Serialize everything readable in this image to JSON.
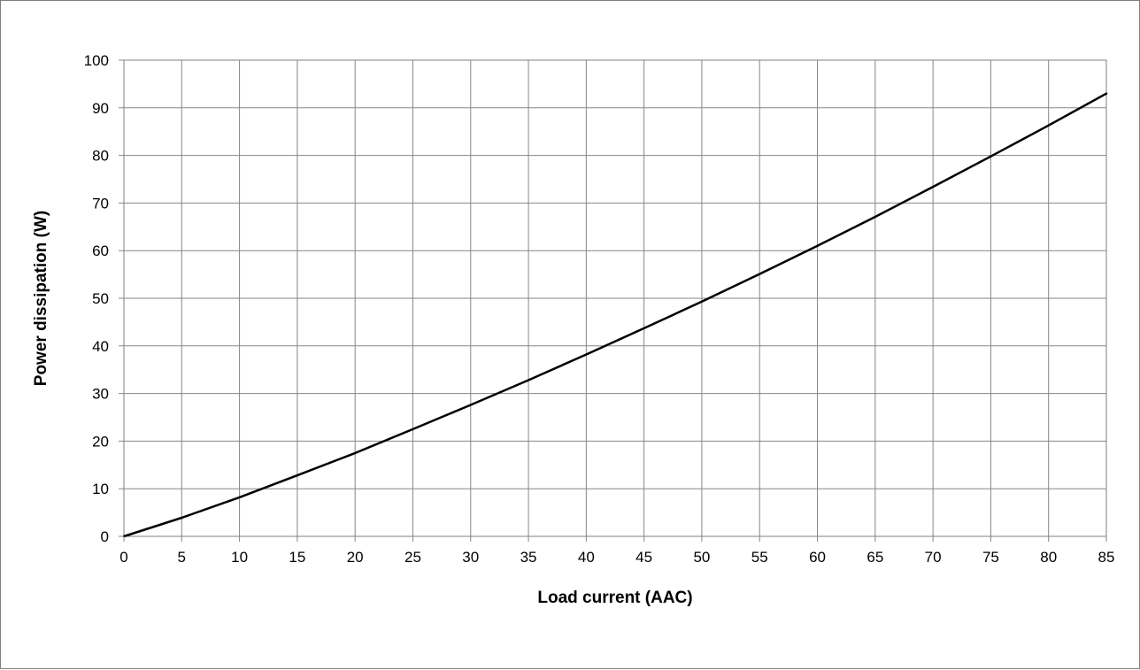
{
  "chart_data": {
    "type": "line",
    "title": "",
    "xlabel": "Load current (AAC)",
    "ylabel": "Power dissipation (W)",
    "xlim": [
      0,
      85
    ],
    "ylim": [
      0,
      100
    ],
    "x_ticks": [
      "0",
      "5",
      "10",
      "15",
      "20",
      "25",
      "30",
      "35",
      "40",
      "45",
      "50",
      "55",
      "60",
      "65",
      "70",
      "75",
      "80",
      "85"
    ],
    "y_ticks": [
      "0",
      "10",
      "20",
      "30",
      "40",
      "50",
      "60",
      "70",
      "80",
      "90",
      "100"
    ],
    "grid": true,
    "legend": "none",
    "series": [
      {
        "color": "#000000",
        "x": [
          0,
          5,
          10,
          15,
          20,
          25,
          30,
          35,
          40,
          45,
          50,
          55,
          60,
          65,
          70,
          75,
          80,
          85
        ],
        "y": [
          0,
          3.9,
          8.2,
          12.8,
          17.5,
          22.5,
          27.6,
          32.8,
          38.2,
          43.7,
          49.3,
          55.1,
          61.0,
          67.1,
          73.4,
          79.8,
          86.3,
          93.0
        ]
      }
    ]
  }
}
